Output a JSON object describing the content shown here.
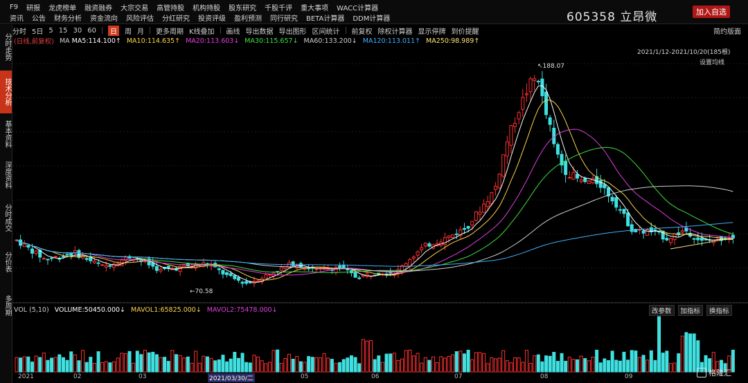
{
  "menu": {
    "row1": [
      "F9",
      "研报",
      "龙虎榜单",
      "融资融券",
      "大宗交易",
      "高管持股",
      "机构持股",
      "股东研究",
      "千股千评",
      "重大事项",
      "WACC计算器"
    ],
    "row2": [
      "资讯",
      "公告",
      "财务分析",
      "资金流向",
      "风险评估",
      "分红研究",
      "投资评级",
      "盈利预测",
      "同行研究",
      "BETA计算器",
      "DDM计算器"
    ]
  },
  "stock": {
    "code": "605358",
    "name": "立昂微",
    "add_label": "加入自选"
  },
  "toolbar": {
    "items": [
      "分时",
      "5日",
      "5",
      "15",
      "30",
      "60",
      "日",
      "周",
      "月",
      "更多周期",
      "K线叠加",
      "画线",
      "导出数据",
      "导出图形",
      "区间统计",
      "前复权",
      "除权计算器",
      "显示停牌",
      "到价提醒"
    ],
    "active_index": 6,
    "right_label": "简约版面"
  },
  "sidebar": {
    "tabs": [
      "分时走势",
      "技术分析",
      "基本资料",
      "深度资料",
      "分时成交",
      "分价表",
      "多周期"
    ],
    "active_index": 1
  },
  "ma": {
    "mode": "(日线,前复权)",
    "label": "MA",
    "items": [
      {
        "text": "MA5:114.100↑",
        "color": "#ffffff"
      },
      {
        "text": "MA10:114.635↑",
        "color": "#ffd54a"
      },
      {
        "text": "MA20:113.603↓",
        "color": "#e040e0"
      },
      {
        "text": "MA30:115.657↓",
        "color": "#40e040"
      },
      {
        "text": "MA60:133.200↓",
        "color": "#cfcfcf"
      },
      {
        "text": "MA120:113.011↑",
        "color": "#40b0ff"
      },
      {
        "text": "MA250:98.989↑",
        "color": "#ffe57a"
      }
    ],
    "range": "2021/1/12-2021/10/20(185根)",
    "settings": "设置均线"
  },
  "volume": {
    "label": "VOL (5,10)",
    "items": [
      {
        "text": "VOLUME:50450.000↓",
        "color": "#ffffff"
      },
      {
        "text": "MAVOL1:65825.000↓",
        "color": "#ffd54a"
      },
      {
        "text": "MAVOL2:75478.000↓",
        "color": "#e040e0"
      }
    ],
    "buttons": [
      "改参数",
      "加指标",
      "换指标"
    ]
  },
  "price_marks": {
    "peak": "188.07",
    "low": "70.58"
  },
  "xaxis": {
    "labels": [
      "2021",
      "02",
      "03",
      "2021/03/30/二",
      "05",
      "06",
      "07",
      "08",
      "09"
    ]
  },
  "colors": {
    "up": "#ff3030",
    "down": "#40e0e0",
    "bg": "#000000",
    "accent": "#d03b1e"
  },
  "watermark": "格隆汇"
}
